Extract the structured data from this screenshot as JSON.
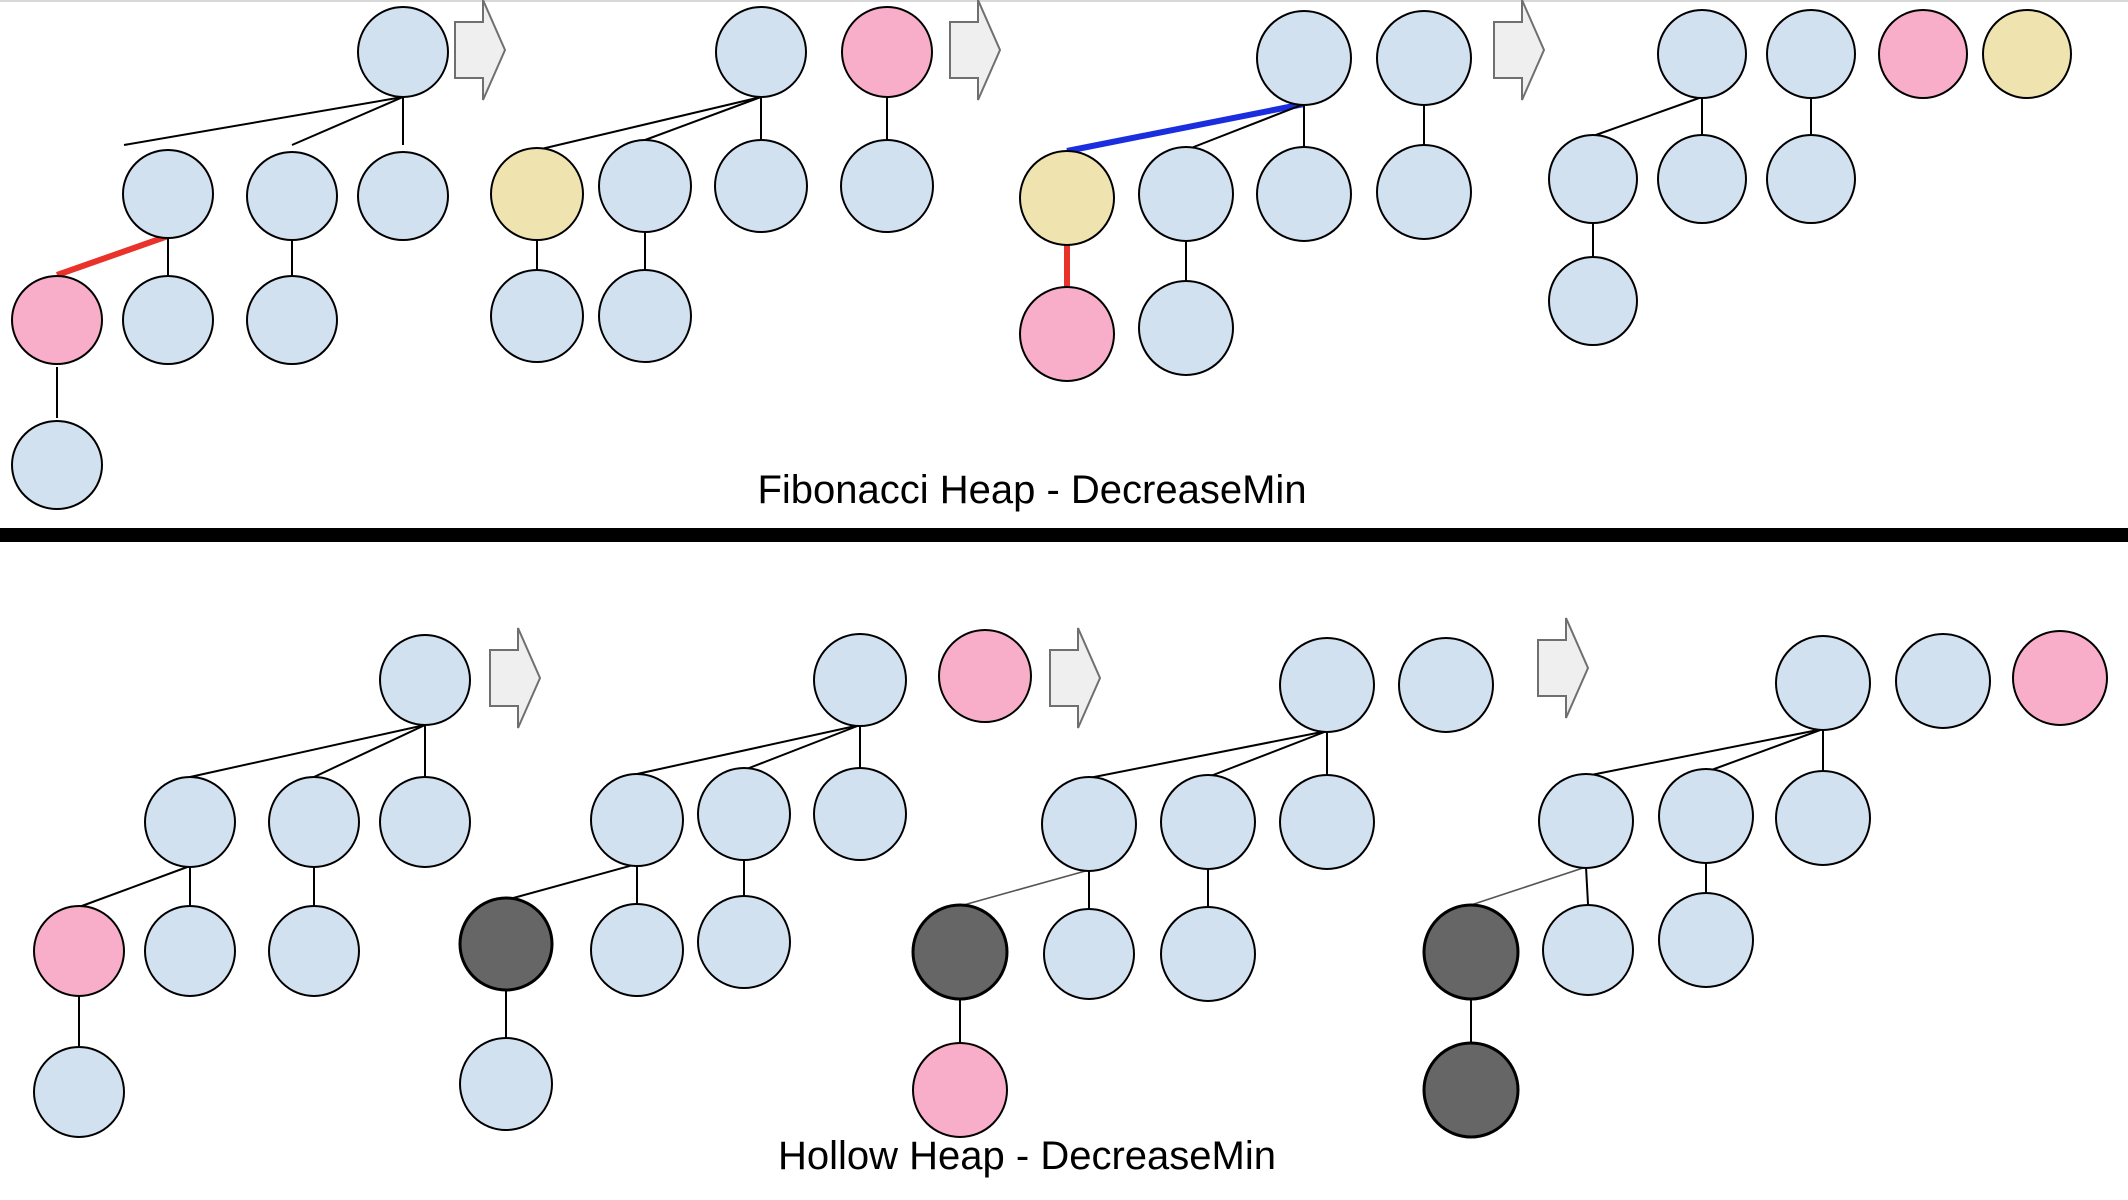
{
  "colors": {
    "node_default": "#d2e1f0",
    "node_marked": "#f8aec8",
    "node_decreased": "#efe3b0",
    "node_hollow": "#666666",
    "edge_default": "#000000",
    "edge_cut": "#e8322a",
    "edge_link": "#1a2ee0",
    "arrow_fill": "#efefef",
    "arrow_stroke": "#6f6f6f",
    "divider": "#000000"
  },
  "fibonacci": {
    "caption": "Fibonacci Heap - DecreaseMin"
  },
  "hollow": {
    "caption": "Hollow Heap - DecreaseMin"
  }
}
